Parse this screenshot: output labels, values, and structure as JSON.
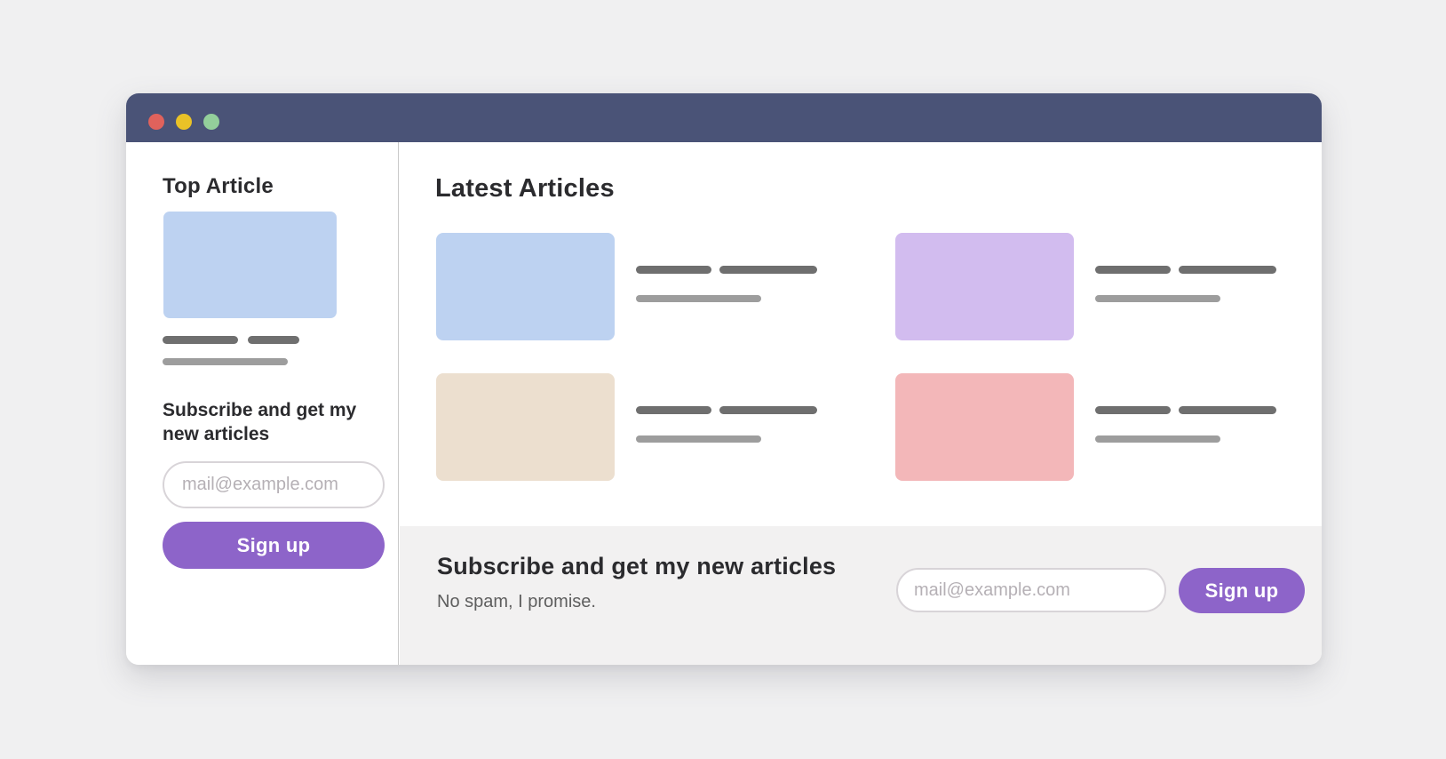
{
  "page": {
    "background_color": "#f0f0f1"
  },
  "window": {
    "titlebar": {
      "color": "#4a5377",
      "controls": [
        {
          "label": "close",
          "color": "#e0625c"
        },
        {
          "label": "minimize",
          "color": "#eac227"
        },
        {
          "label": "maximize",
          "color": "#93cf9b"
        }
      ]
    },
    "sidebar": {
      "heading": "Top Article",
      "top_article_thumb_color": "#bdd2f1",
      "subscribe_heading": "Subscribe and get my new articles",
      "form": {
        "email_placeholder": "mail@example.com",
        "signup_label": "Sign up"
      }
    },
    "main": {
      "heading": "Latest Articles",
      "articles": [
        {
          "thumb_color": "#bdd2f1"
        },
        {
          "thumb_color": "#d2bcef"
        },
        {
          "thumb_color": "#ecdfcf"
        },
        {
          "thumb_color": "#f3b7b9"
        }
      ]
    },
    "footer": {
      "heading": "Subscribe and get my new articles",
      "note": "No spam, I promise.",
      "form": {
        "email_placeholder": "mail@example.com",
        "signup_label": "Sign up"
      }
    },
    "accent_color": "#8d64c9"
  }
}
